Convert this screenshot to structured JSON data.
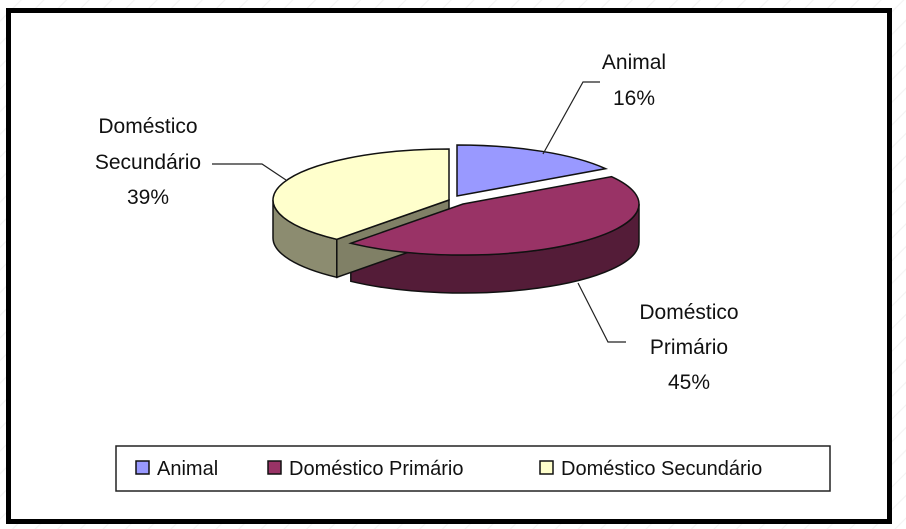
{
  "chart_data": {
    "type": "pie",
    "style": "3d-exploded",
    "categories": [
      "Animal",
      "Doméstico Primário",
      "Doméstico Secundário"
    ],
    "values": [
      16,
      45,
      39
    ],
    "unit": "%",
    "labels": [
      {
        "lines": [
          "Animal",
          "16%"
        ]
      },
      {
        "lines": [
          "Doméstico",
          "Primário",
          "45%"
        ]
      },
      {
        "lines": [
          "Doméstico",
          "Secundário",
          "39%"
        ]
      }
    ],
    "legend": {
      "placement": "bottom",
      "entries": [
        "Animal",
        "Doméstico Primário",
        "Doméstico Secundário"
      ]
    },
    "colors": {
      "Animal": "#9999ff",
      "Doméstico Primário": "#993366",
      "Doméstico Secundário": "#ffffcc"
    }
  }
}
